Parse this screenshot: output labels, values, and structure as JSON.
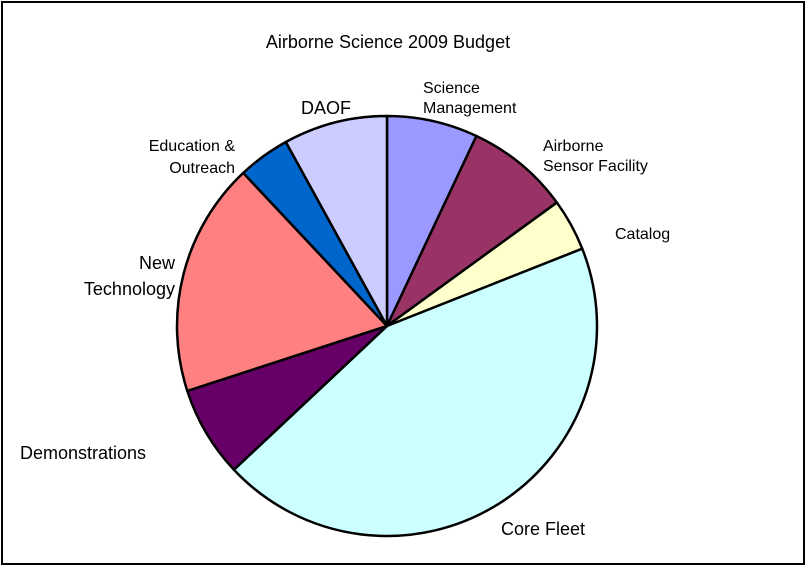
{
  "chart_data": {
    "type": "pie",
    "title": "Airborne Science 2009 Budget",
    "start": "top",
    "direction": "clockwise",
    "legend": "none",
    "slices": [
      {
        "label_lines": [
          "Science",
          "Management"
        ],
        "value": 7,
        "color": "#9999ff"
      },
      {
        "label_lines": [
          "Airborne",
          "Sensor Facility"
        ],
        "value": 8,
        "color": "#993366"
      },
      {
        "label_lines": [
          "Catalog"
        ],
        "value": 4,
        "color": "#ffffcc"
      },
      {
        "label_lines": [
          "Core Fleet"
        ],
        "value": 44,
        "color": "#ccffff"
      },
      {
        "label_lines": [
          "Demonstrations"
        ],
        "value": 7,
        "color": "#660066"
      },
      {
        "label_lines": [
          "New",
          "Technology"
        ],
        "value": 18,
        "color": "#ff8080"
      },
      {
        "label_lines": [
          "Education &",
          "Outreach"
        ],
        "value": 4,
        "color": "#0066cc"
      },
      {
        "label_lines": [
          "DAOF"
        ],
        "value": 8,
        "color": "#ccccff"
      }
    ]
  }
}
